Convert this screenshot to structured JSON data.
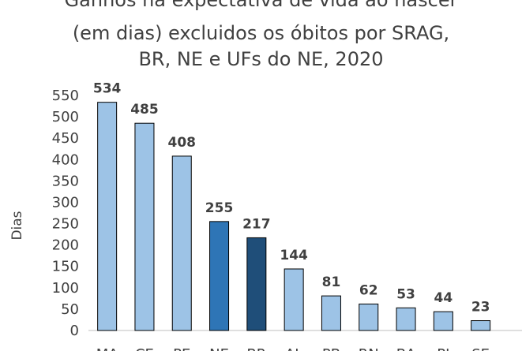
{
  "chart_data": {
    "type": "bar",
    "title_lines": [
      "Ganhos na expectativa de vida ao nascer",
      "(em dias) excluidos os óbitos por SRAG,",
      "BR, NE e UFs do NE, 2020"
    ],
    "ylabel": "Dias",
    "xlabel": "",
    "ylim": [
      0,
      550
    ],
    "yticks": [
      0,
      50,
      100,
      150,
      200,
      250,
      300,
      350,
      400,
      450,
      500,
      550
    ],
    "categories": [
      "MA",
      "CE",
      "PE",
      "NE",
      "BR",
      "AL",
      "PB",
      "RN",
      "BA",
      "PI",
      "SE"
    ],
    "values": [
      534,
      485,
      408,
      255,
      217,
      144,
      81,
      62,
      53,
      44,
      23
    ],
    "colors": [
      "#9DC3E6",
      "#9DC3E6",
      "#9DC3E6",
      "#2E75B6",
      "#1F4E79",
      "#9DC3E6",
      "#9DC3E6",
      "#9DC3E6",
      "#9DC3E6",
      "#9DC3E6",
      "#9DC3E6"
    ],
    "grid": false,
    "legend": "none"
  }
}
